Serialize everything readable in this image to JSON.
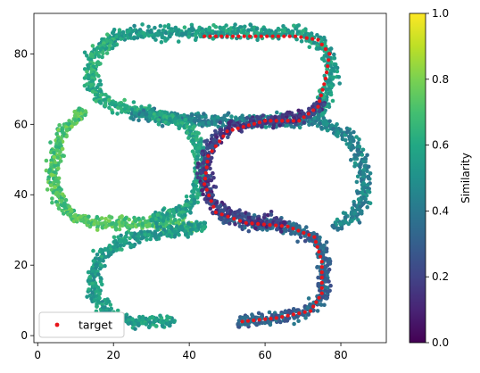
{
  "chart_data": {
    "type": "scatter",
    "title": "",
    "xlabel": "",
    "ylabel": "",
    "xlim": [
      -1,
      92
    ],
    "ylim": [
      -2,
      91.5
    ],
    "xticks": [
      0,
      20,
      40,
      60,
      80
    ],
    "yticks": [
      0,
      20,
      40,
      60,
      80
    ],
    "grid": false,
    "legend": {
      "placement": "lower-left",
      "entries": [
        {
          "label": "target",
          "color": "#e8141a"
        }
      ]
    },
    "colorbar": {
      "label": "Similarity",
      "range": [
        0.0,
        1.0
      ],
      "ticks": [
        "0.0",
        "0.2",
        "0.4",
        "0.6",
        "0.8",
        "1.0"
      ],
      "colormap": "viridis",
      "colors": [
        "#440154",
        "#482475",
        "#414487",
        "#355f8d",
        "#2a788e",
        "#21918c",
        "#22a884",
        "#44bf70",
        "#7ad151",
        "#bddf26",
        "#fde725"
      ]
    },
    "target_path": [
      [
        77,
        80
      ],
      [
        76,
        73
      ],
      [
        74,
        65
      ],
      [
        69,
        61
      ],
      [
        60,
        61
      ],
      [
        50,
        58
      ],
      [
        45,
        51
      ],
      [
        44,
        43
      ],
      [
        47,
        35
      ],
      [
        55,
        32
      ],
      [
        66,
        31
      ],
      [
        73,
        28
      ],
      [
        75,
        21
      ],
      [
        75,
        12
      ],
      [
        72,
        7
      ],
      [
        63,
        5
      ],
      [
        54,
        4
      ]
    ],
    "target_top_run": [
      [
        44,
        85
      ],
      [
        56,
        85
      ],
      [
        68,
        85
      ],
      [
        74,
        84
      ],
      [
        77,
        80
      ]
    ],
    "cloud_paths": [
      {
        "name": "top-loop",
        "points": [
          [
            17,
            82
          ],
          [
            20,
            85
          ],
          [
            30,
            86
          ],
          [
            40,
            86
          ],
          [
            50,
            86
          ],
          [
            60,
            86
          ],
          [
            70,
            86
          ],
          [
            76,
            82
          ],
          [
            78,
            75
          ],
          [
            76,
            68
          ],
          [
            74,
            62
          ]
        ],
        "similarity": 0.55
      },
      {
        "name": "left-upper-arc",
        "points": [
          [
            20,
            84
          ],
          [
            15,
            80
          ],
          [
            14,
            72
          ],
          [
            18,
            66
          ],
          [
            25,
            64
          ],
          [
            30,
            63
          ]
        ],
        "similarity": 0.62
      },
      {
        "name": "mid-band",
        "points": [
          [
            25,
            63
          ],
          [
            35,
            62
          ],
          [
            45,
            61
          ],
          [
            55,
            61
          ],
          [
            65,
            61
          ],
          [
            75,
            61
          ],
          [
            83,
            56
          ],
          [
            86,
            48
          ],
          [
            86,
            40
          ],
          [
            84,
            34
          ],
          [
            78,
            31
          ]
        ],
        "similarity": 0.45
      },
      {
        "name": "left-middle-loop",
        "points": [
          [
            12,
            64
          ],
          [
            6,
            57
          ],
          [
            4,
            48
          ],
          [
            5,
            40
          ],
          [
            9,
            34
          ],
          [
            17,
            32
          ],
          [
            26,
            32
          ],
          [
            36,
            32
          ],
          [
            42,
            30
          ]
        ],
        "similarity": 0.72
      },
      {
        "name": "inner-right-c",
        "points": [
          [
            30,
            63
          ],
          [
            40,
            60
          ],
          [
            43,
            52
          ],
          [
            43,
            44
          ],
          [
            40,
            36
          ],
          [
            30,
            33
          ]
        ],
        "similarity": 0.58
      },
      {
        "name": "lower-s",
        "points": [
          [
            44,
            31
          ],
          [
            30,
            29
          ],
          [
            20,
            26
          ],
          [
            15,
            20
          ],
          [
            15,
            12
          ],
          [
            18,
            6
          ],
          [
            25,
            4
          ],
          [
            36,
            4
          ]
        ],
        "similarity": 0.55
      },
      {
        "name": "lower-right",
        "points": [
          [
            53,
            4
          ],
          [
            62,
            5
          ],
          [
            70,
            6
          ],
          [
            75,
            11
          ],
          [
            76,
            20
          ],
          [
            74,
            27
          ],
          [
            66,
            31
          ],
          [
            55,
            32
          ],
          [
            47,
            35
          ]
        ],
        "similarity": 0.32
      },
      {
        "name": "blue-core-s",
        "points": [
          [
            75,
            66
          ],
          [
            70,
            62
          ],
          [
            60,
            61
          ],
          [
            50,
            59
          ],
          [
            45,
            53
          ],
          [
            44,
            45
          ],
          [
            46,
            37
          ],
          [
            54,
            33
          ],
          [
            65,
            32
          ]
        ],
        "similarity": 0.18
      }
    ]
  }
}
